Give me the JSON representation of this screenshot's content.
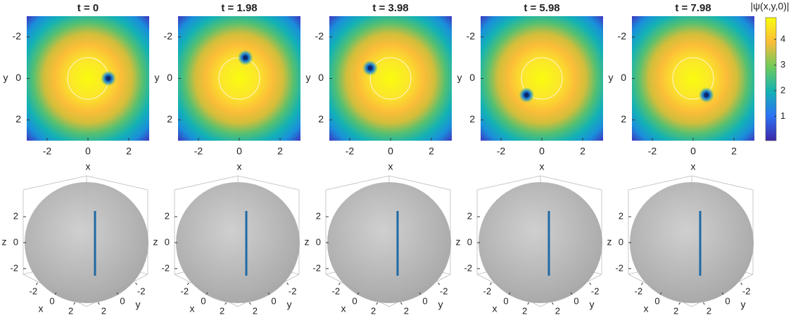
{
  "chart_data": [
    {
      "type": "heatmap",
      "title": "t = 0",
      "xlabel": "x",
      "ylabel": "y",
      "xlim": [
        -3,
        3
      ],
      "ylim": [
        -3,
        3
      ],
      "ydir": "reverse",
      "xticks": [
        -2,
        0,
        2
      ],
      "yticks": [
        -2,
        0,
        2
      ],
      "x": [
        1.0
      ],
      "values": [
        0.0
      ]
    },
    {
      "type": "heatmap",
      "title": "t = 1.98",
      "xlabel": "x",
      "ylabel": "y",
      "xlim": [
        -3,
        3
      ],
      "ylim": [
        -3,
        3
      ],
      "ydir": "reverse",
      "xticks": [
        -2,
        0,
        2
      ],
      "yticks": [
        -2,
        0,
        2
      ],
      "x": [
        0.3
      ],
      "values": [
        -1.0
      ]
    },
    {
      "type": "heatmap",
      "title": "t = 3.98",
      "xlabel": "x",
      "ylabel": "y",
      "xlim": [
        -3,
        3
      ],
      "ylim": [
        -3,
        3
      ],
      "ydir": "reverse",
      "xticks": [
        -2,
        0,
        2
      ],
      "yticks": [
        -2,
        0,
        2
      ],
      "x": [
        -1.0
      ],
      "values": [
        -0.5
      ]
    },
    {
      "type": "heatmap",
      "title": "t = 5.98",
      "xlabel": "x",
      "ylabel": "y",
      "xlim": [
        -3,
        3
      ],
      "ylim": [
        -3,
        3
      ],
      "ydir": "reverse",
      "xticks": [
        -2,
        0,
        2
      ],
      "yticks": [
        -2,
        0,
        2
      ],
      "x": [
        -0.75
      ],
      "values": [
        0.8
      ]
    },
    {
      "type": "heatmap",
      "title": "t = 7.98",
      "xlabel": "x",
      "ylabel": "y",
      "xlim": [
        -3,
        3
      ],
      "ylim": [
        -3,
        3
      ],
      "ydir": "reverse",
      "xticks": [
        -2,
        0,
        2
      ],
      "yticks": [
        -2,
        0,
        2
      ],
      "x": [
        0.65
      ],
      "values": [
        0.8
      ]
    },
    {
      "type": "colorbar",
      "ylabel": "|ψ(x,y,0)|",
      "ylim": [
        0.05,
        4.85
      ],
      "yticks": [
        1,
        2,
        3,
        4
      ]
    },
    {
      "type": "surface3d",
      "xlabel": "x",
      "ylabel": "y",
      "zlabel": "z",
      "xlim": [
        -3,
        3
      ],
      "ylim": [
        -3,
        3
      ],
      "zlim": [
        -3.2,
        3.2
      ],
      "xticks": [
        -2,
        0,
        2
      ],
      "yticks": [
        -2,
        0,
        2
      ],
      "zticks": [
        -2,
        0,
        2
      ]
    },
    {
      "type": "surface3d",
      "xlabel": "x",
      "ylabel": "y",
      "zlabel": "z",
      "xlim": [
        -3,
        3
      ],
      "ylim": [
        -3,
        3
      ],
      "zlim": [
        -3.2,
        3.2
      ],
      "xticks": [
        -2,
        0,
        2
      ],
      "yticks": [
        -2,
        0,
        2
      ],
      "zticks": [
        -2,
        0,
        2
      ]
    },
    {
      "type": "surface3d",
      "xlabel": "x",
      "ylabel": "y",
      "zlabel": "z",
      "xlim": [
        -3,
        3
      ],
      "ylim": [
        -3,
        3
      ],
      "zlim": [
        -3.2,
        3.2
      ],
      "xticks": [
        -2,
        0,
        2
      ],
      "yticks": [
        -2,
        0,
        2
      ],
      "zticks": [
        -2,
        0,
        2
      ]
    },
    {
      "type": "surface3d",
      "xlabel": "x",
      "ylabel": "y",
      "zlabel": "z",
      "xlim": [
        -3,
        3
      ],
      "ylim": [
        -3,
        3
      ],
      "zlim": [
        -3.2,
        3.2
      ],
      "xticks": [
        -2,
        0,
        2
      ],
      "yticks": [
        -2,
        0,
        2
      ],
      "zticks": [
        -2,
        0,
        2
      ]
    },
    {
      "type": "surface3d",
      "xlabel": "x",
      "ylabel": "y",
      "zlabel": "z",
      "xlim": [
        -3,
        3
      ],
      "ylim": [
        -3,
        3
      ],
      "zlim": [
        -3.2,
        3.2
      ],
      "xticks": [
        -2,
        0,
        2
      ],
      "yticks": [
        -2,
        0,
        2
      ],
      "zticks": [
        -2,
        0,
        2
      ]
    }
  ]
}
